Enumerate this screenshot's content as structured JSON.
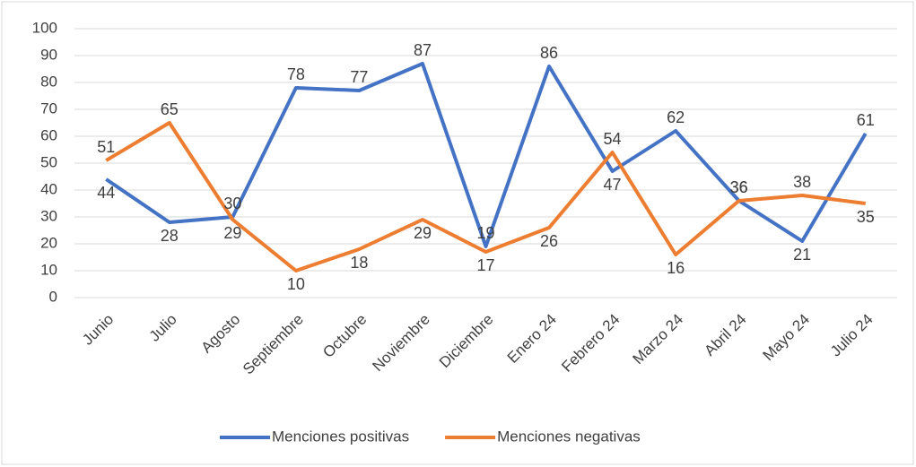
{
  "chart_data": {
    "type": "line",
    "categories": [
      "Junio",
      "Julio",
      "Agosto",
      "Septiembre",
      "Octubre",
      "Noviembre",
      "Diciembre",
      "Enero 24",
      "Febrero 24",
      "Marzo 24",
      "Abril 24",
      "Mayo 24",
      "Julio 24"
    ],
    "series": [
      {
        "name": "Menciones positivas",
        "color": "#4472c4",
        "values": [
          44,
          28,
          30,
          78,
          77,
          87,
          19,
          86,
          47,
          62,
          36,
          21,
          61
        ]
      },
      {
        "name": "Menciones negativas",
        "color": "#ed7d31",
        "values": [
          51,
          65,
          29,
          10,
          18,
          29,
          17,
          26,
          54,
          16,
          36,
          38,
          35
        ]
      }
    ],
    "ylim": [
      0,
      100
    ],
    "yticks": [
      0,
      10,
      20,
      30,
      40,
      50,
      60,
      70,
      80,
      90,
      100
    ],
    "grid": true,
    "legend": "bottom"
  }
}
